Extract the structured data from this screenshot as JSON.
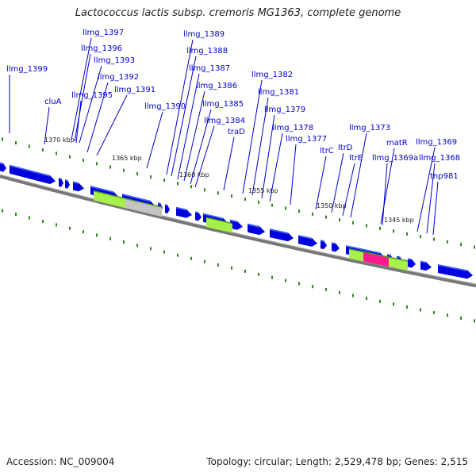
{
  "title": "Lactococcus lactis subsp. cremoris MG1363, complete genome",
  "footer": {
    "accession": "Accession: NC_009004",
    "summary": "Topology: circular; Length: 2,529,478 bp; Genes: 2,515"
  },
  "colors": {
    "gene": "#0000dd",
    "gene_highlight": "#3b6cff",
    "label": "#0000cc",
    "backbone": "#777777",
    "dots": "#2a8a1a",
    "feature_green": "#a6f04a",
    "feature_gray": "#c4c4c4",
    "feature_magenta": "#ff1a8c"
  },
  "scale_labels": [
    "1370 kbp",
    "1365 kbp",
    "1360 kbp",
    "1355 kbp",
    "1350 kbp",
    "1345 kbp"
  ],
  "gene_labels": [
    "llmg_1399",
    "cluA",
    "llmg_1397",
    "llmg_1396",
    "llmg_1393",
    "llmg_1395",
    "llmg_1392",
    "llmg_1391",
    "llmg_1390",
    "llmg_1389",
    "llmg_1388",
    "llmg_1387",
    "llmg_1386",
    "llmg_1385",
    "llmg_1384",
    "traD",
    "llmg_1382",
    "llmg_1381",
    "llmg_1379",
    "llmg_1378",
    "llmg_1377",
    "ltrC",
    "ltrD",
    "ltrE",
    "llmg_1373",
    "matR",
    "llmg_1369a",
    "llmg_1369",
    "llmg_1368",
    "tnp981"
  ]
}
